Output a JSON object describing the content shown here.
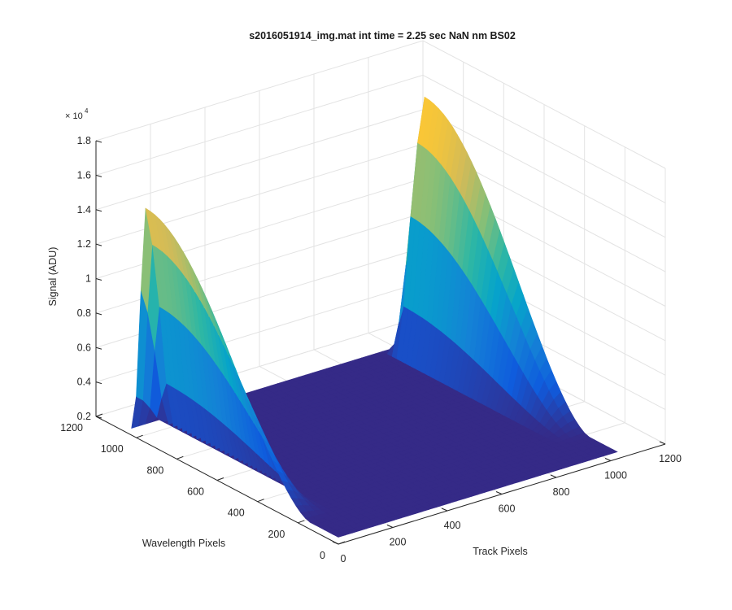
{
  "chart_data": {
    "type": "surface",
    "title": "s2016051914_img.mat int time = 2.25 sec  NaN nm BS02",
    "xlabel": "Track Pixels",
    "ylabel": "Wavelength Pixels",
    "zlabel": "Signal (ADU)",
    "xlim": [
      0,
      1200
    ],
    "ylim": [
      0,
      1200
    ],
    "zlim": [
      2000,
      18000
    ],
    "z_multiplier_label": "× 10",
    "z_multiplier_exp": "4",
    "x_ticks": [
      "0",
      "200",
      "400",
      "600",
      "800",
      "1000",
      "1200"
    ],
    "y_ticks": [
      "0",
      "200",
      "400",
      "600",
      "800",
      "1000",
      "1200"
    ],
    "z_ticks": [
      "0.2",
      "0.4",
      "0.6",
      "0.8",
      "1",
      "1.2",
      "1.4",
      "1.6",
      "1.8"
    ],
    "x_tick_values": [
      0,
      200,
      400,
      600,
      800,
      1000,
      1200
    ],
    "y_tick_values": [
      0,
      200,
      400,
      600,
      800,
      1000,
      1200
    ],
    "z_tick_values": [
      2000,
      4000,
      6000,
      8000,
      10000,
      12000,
      14000,
      16000,
      18000
    ],
    "data_extent": {
      "x": [
        0,
        1024
      ],
      "y": [
        0,
        1024
      ]
    },
    "background_level": 2400,
    "grid": true,
    "colormap": "parula",
    "colormap_stops": [
      "#352a87",
      "#0f5cdd",
      "#1481d6",
      "#06a4ca",
      "#2eb7a4",
      "#87bf77",
      "#d1bb59",
      "#fec832",
      "#f9fb0e"
    ],
    "series": [
      {
        "name": "",
        "track_center": 0,
        "peak": 15600,
        "wavelength_peak_at": 960,
        "wavelength_falloff_end": 140
      },
      {
        "name": "",
        "track_center": 1024,
        "peak": 17100,
        "wavelength_peak_at": 960,
        "wavelength_falloff_end": 140
      }
    ]
  }
}
